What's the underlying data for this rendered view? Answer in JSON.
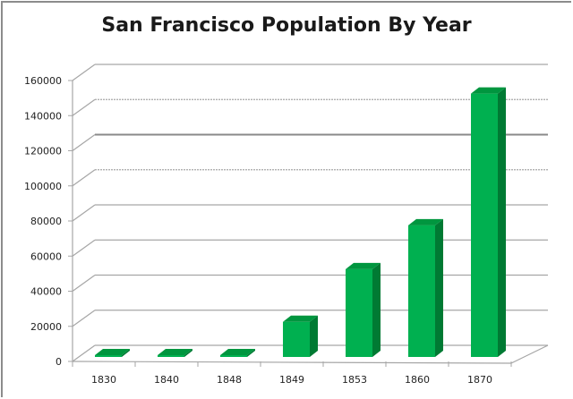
{
  "chart_data": {
    "type": "bar",
    "style": "3d-column",
    "title": "San Francisco Population By Year",
    "xlabel": "",
    "ylabel": "",
    "categories": [
      "1830",
      "1840",
      "1848",
      "1849",
      "1853",
      "1860",
      "1870"
    ],
    "series": [
      {
        "name": "Population",
        "values": [
          300,
          200,
          1000,
          20000,
          50000,
          75000,
          150000
        ]
      }
    ],
    "ylim": [
      0,
      160000
    ],
    "yticks": [
      0,
      20000,
      40000,
      60000,
      80000,
      100000,
      120000,
      140000,
      160000
    ],
    "ytick_labels": [
      "0",
      "20000",
      "40000",
      "60000",
      "80000",
      "100000",
      "120000",
      "140000",
      "160000"
    ],
    "grid": true,
    "legend": "none",
    "colors": {
      "front": "#00b050",
      "side": "#007a33",
      "top": "#00963f",
      "grid": "#a6a6a6"
    }
  }
}
